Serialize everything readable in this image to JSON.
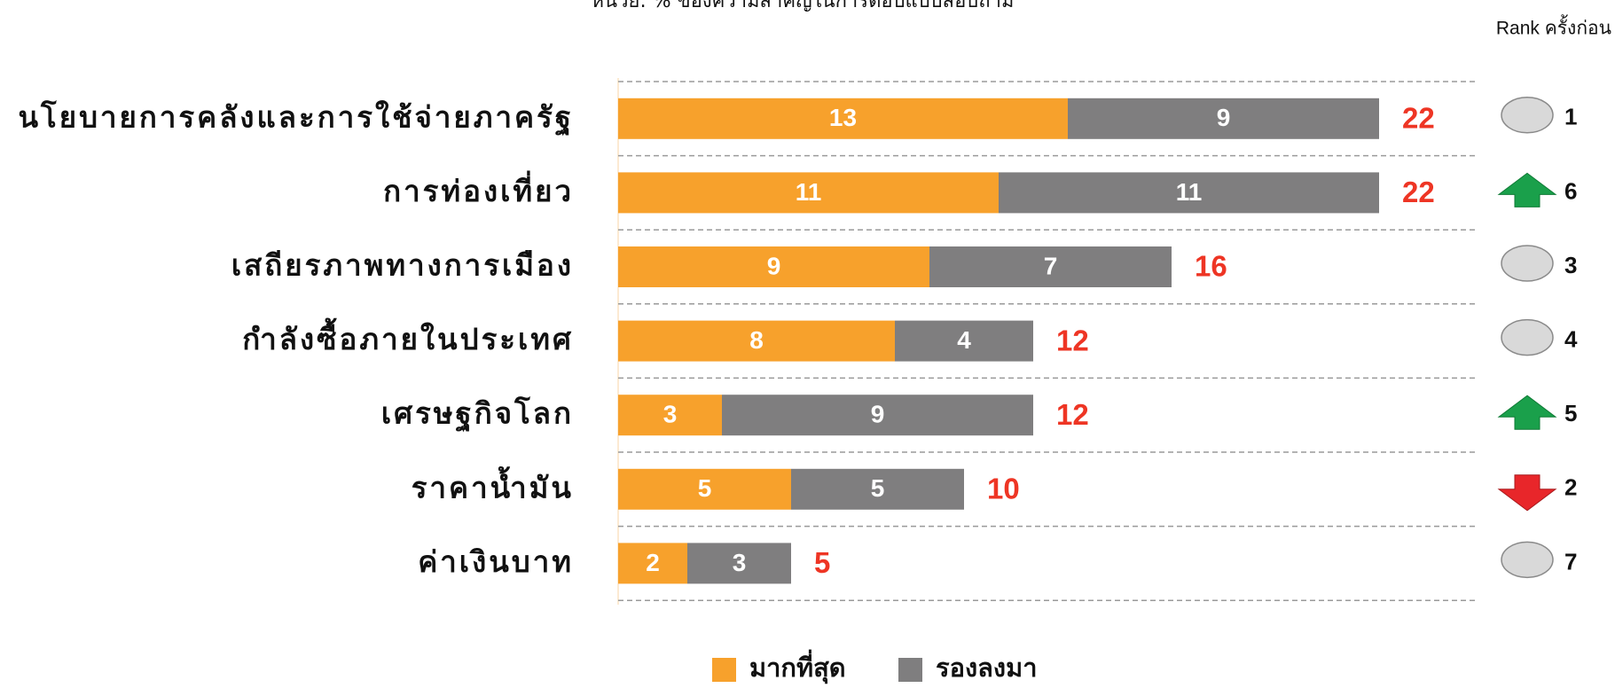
{
  "chart_data": {
    "type": "stacked-bar-horizontal",
    "subtitle": "หน่วย: % ของความสำคัญในการตอบแบบสอบถาม",
    "categories": [
      "นโยบายการคลังและการใช้จ่ายภาครัฐ",
      "การท่องเที่ยว",
      "เสถียรภาพทางการเมือง",
      "กำลังซื้อภายในประเทศ",
      "เศรษฐกิจโลก",
      "ราคาน้ำมัน",
      "ค่าเงินบาท"
    ],
    "series": [
      {
        "name": "มากที่สุด",
        "color": "#f7a12c",
        "values": [
          13,
          11,
          9,
          8,
          3,
          5,
          2
        ]
      },
      {
        "name": "รองลงมา",
        "color": "#7f7e7f",
        "values": [
          9,
          11,
          7,
          4,
          9,
          5,
          3
        ]
      }
    ],
    "totals": [
      22,
      22,
      16,
      12,
      12,
      10,
      5
    ],
    "rank_label": "Rank ครั้งก่อน",
    "previous_rank": [
      1,
      6,
      3,
      4,
      5,
      2,
      7
    ],
    "rank_change": [
      "same",
      "up",
      "same",
      "same",
      "up",
      "down",
      "same"
    ],
    "legend": "bottom"
  }
}
